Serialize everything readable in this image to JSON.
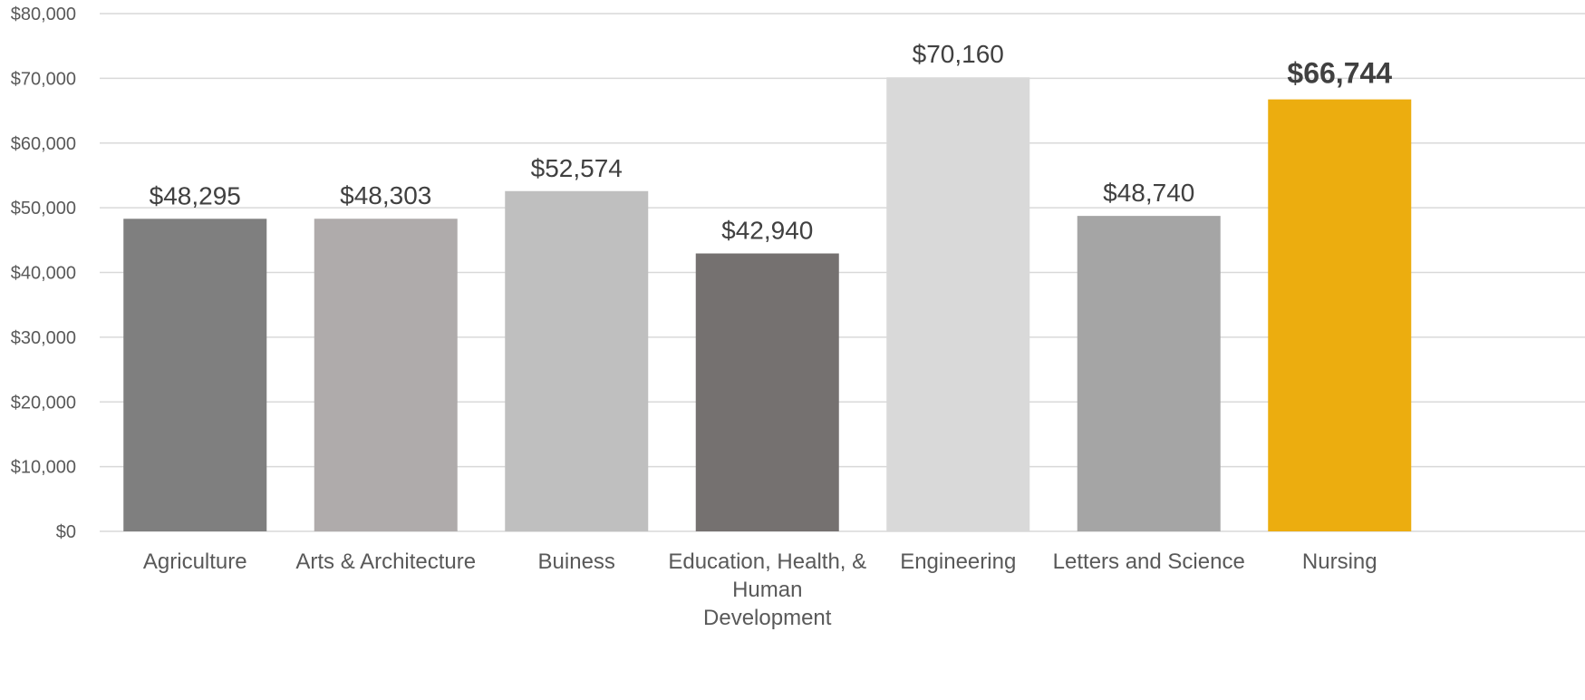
{
  "chart_data": {
    "type": "bar",
    "categories": [
      [
        "Agriculture"
      ],
      [
        "Arts & Architecture"
      ],
      [
        "Buiness"
      ],
      [
        "Education, Health, &",
        "Human",
        "Development"
      ],
      [
        "Engineering"
      ],
      [
        "Letters and Science"
      ],
      [
        "Nursing"
      ]
    ],
    "values": [
      48295,
      48303,
      52574,
      42940,
      70160,
      48740,
      66744
    ],
    "data_labels": [
      "$48,295",
      "$48,303",
      "$52,574",
      "$42,940",
      "$70,160",
      "$48,740",
      "$66,744"
    ],
    "colors": [
      "#7f7f7f",
      "#afabab",
      "#bfbfbf",
      "#757170",
      "#d9d9d9",
      "#a5a5a5",
      "#ecad0f"
    ],
    "highlight_index": 6,
    "ylim": [
      0,
      80000
    ],
    "yticks": [
      0,
      10000,
      20000,
      30000,
      40000,
      50000,
      60000,
      70000,
      80000
    ],
    "ytick_labels": [
      "$0",
      "$10,000",
      "$20,000",
      "$30,000",
      "$40,000",
      "$50,000",
      "$60,000",
      "$70,000",
      "$80,000"
    ],
    "title": "",
    "xlabel": "",
    "ylabel": "",
    "grid": true,
    "legend": "none"
  }
}
